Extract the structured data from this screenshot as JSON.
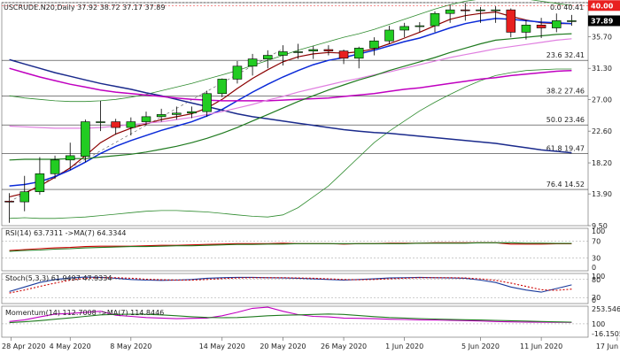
{
  "main": {
    "title": "USCRUDE.N20,Daily  37.92 38.72 37.17 37.89",
    "fib_top_label": "0.0 40.41",
    "current_level": "40.00",
    "current_price": "37.89",
    "y_ticks": [
      "35.70",
      "31.30",
      "27.00",
      "22.60",
      "18.20",
      "13.90",
      "9.50"
    ]
  },
  "rsi": {
    "label": "RSI(14) 63.7311  ->MA(7) 64.3344",
    "ticks": [
      "100",
      "70",
      "30",
      "0"
    ]
  },
  "stoch": {
    "label": "Stoch(5,3,3) 61.9497 47.9334",
    "ticks": [
      "100",
      "80",
      "20",
      "0"
    ]
  },
  "momentum": {
    "label": "Momentum(14) 112.7008  ->MA(7) 114.8446",
    "ticks": [
      "253.5462",
      "100",
      "-16.1505"
    ]
  },
  "x_axis_labels": [
    "28 Apr 2020",
    "4 May 2020",
    "8 May 2020",
    "14 May 2020",
    "20 May 2020",
    "26 May 2020",
    "1 Jun 2020",
    "5 Jun 2020",
    "11 Jun 2020",
    "17 Jun 2020"
  ],
  "chart_data": [
    {
      "type": "candlestick",
      "title": "USCRUDE.N20,Daily",
      "ylim": [
        9.5,
        40.4
      ],
      "x": [
        "27 Apr",
        "28 Apr",
        "29 Apr",
        "30 Apr",
        "1 May",
        "4 May",
        "5 May",
        "6 May",
        "7 May",
        "8 May",
        "11 May",
        "12 May",
        "13 May",
        "14 May",
        "15 May",
        "18 May",
        "19 May",
        "20 May",
        "21 May",
        "22 May",
        "25 May",
        "26 May",
        "27 May",
        "28 May",
        "29 May",
        "1 Jun",
        "2 Jun",
        "3 Jun",
        "4 Jun",
        "5 Jun",
        "8 Jun",
        "9 Jun",
        "10 Jun",
        "11 Jun",
        "12 Jun",
        "15 Jun",
        "16 Jun",
        "17 Jun"
      ],
      "open": [
        12.9,
        12.8,
        14.2,
        16.7,
        18.6,
        19.1,
        23.9,
        23.9,
        23.1,
        23.9,
        24.6,
        24.9,
        25.1,
        25.3,
        27.8,
        29.8,
        31.6,
        32.6,
        33.1,
        33.6,
        33.7,
        33.9,
        33.7,
        32.7,
        34.1,
        35.1,
        36.6,
        37.1,
        37.2,
        38.9,
        39.4,
        39.3,
        39.4,
        39.4,
        36.3,
        37.3,
        36.9,
        37.9
      ],
      "high": [
        14.0,
        16.4,
        19.0,
        19.2,
        21.0,
        24.2,
        26.8,
        24.3,
        24.5,
        25.3,
        25.7,
        26.0,
        26.0,
        28.2,
        29.9,
        32.3,
        33.3,
        33.8,
        34.5,
        34.7,
        34.4,
        34.5,
        33.9,
        34.3,
        35.6,
        37.2,
        37.6,
        37.7,
        39.2,
        40.1,
        40.3,
        39.8,
        39.9,
        39.6,
        38.0,
        38.3,
        38.9,
        38.7
      ],
      "low": [
        9.9,
        11.5,
        13.8,
        16.0,
        17.2,
        18.3,
        22.6,
        22.1,
        22.0,
        23.4,
        23.9,
        24.2,
        24.4,
        24.6,
        27.3,
        29.2,
        30.3,
        31.3,
        31.7,
        32.6,
        32.6,
        33.1,
        31.9,
        31.3,
        33.1,
        34.7,
        35.6,
        36.3,
        36.3,
        37.6,
        37.9,
        37.6,
        37.6,
        35.6,
        35.3,
        35.5,
        36.3,
        37.2
      ],
      "close": [
        12.8,
        14.2,
        16.7,
        18.6,
        19.2,
        23.9,
        23.9,
        23.1,
        23.9,
        24.6,
        24.9,
        25.1,
        25.3,
        27.8,
        29.8,
        31.6,
        32.6,
        33.1,
        33.6,
        33.6,
        33.9,
        33.7,
        32.7,
        34.1,
        35.1,
        36.6,
        37.1,
        37.2,
        38.9,
        39.4,
        39.3,
        39.4,
        39.4,
        36.3,
        37.3,
        36.9,
        37.9,
        37.9
      ],
      "fib_levels": [
        {
          "label": "0.0 40.41",
          "value": 40.41
        },
        {
          "label": "23.6 32.41",
          "value": 32.41
        },
        {
          "label": "38.2 27.46",
          "value": 27.46
        },
        {
          "label": "50.0 23.46",
          "value": 23.46
        },
        {
          "label": "61.8 19.47",
          "value": 19.47
        },
        {
          "label": "76.4 14.52",
          "value": 14.52
        }
      ],
      "horizontal_line": 40.0,
      "moving_averages": [
        {
          "color": "#8b0000",
          "values": [
            13.5,
            14.0,
            15.0,
            16.2,
            17.5,
            19.2,
            21.0,
            22.2,
            23.0,
            23.6,
            24.2,
            24.6,
            25.0,
            25.8,
            27.0,
            28.5,
            29.9,
            31.1,
            32.2,
            32.9,
            33.3,
            33.5,
            33.4,
            33.6,
            34.0,
            34.7,
            35.5,
            36.3,
            37.2,
            38.1,
            38.6,
            38.9,
            39.1,
            38.5,
            38.0,
            37.6,
            37.5,
            37.5
          ]
        },
        {
          "color": "#0a2ad8",
          "values": [
            15.0,
            15.2,
            15.6,
            16.3,
            17.2,
            18.3,
            19.5,
            20.5,
            21.3,
            22.0,
            22.7,
            23.3,
            23.9,
            24.7,
            25.6,
            26.8,
            28.0,
            29.1,
            30.1,
            31.0,
            31.8,
            32.4,
            32.8,
            33.3,
            33.8,
            34.4,
            35.0,
            35.5,
            36.2,
            36.9,
            37.5,
            37.9,
            38.2,
            38.1,
            37.9,
            37.7,
            37.6,
            37.5
          ]
        },
        {
          "color": "#1a2a8c",
          "values": [
            32.5,
            31.9,
            31.3,
            30.7,
            30.2,
            29.7,
            29.2,
            28.8,
            28.4,
            27.9,
            27.5,
            27.0,
            26.5,
            26.0,
            25.5,
            25.0,
            24.6,
            24.3,
            24.0,
            23.7,
            23.4,
            23.1,
            22.8,
            22.6,
            22.4,
            22.3,
            22.1,
            21.9,
            21.7,
            21.5,
            21.3,
            21.1,
            20.9,
            20.6,
            20.3,
            20.0,
            19.8,
            19.6
          ]
        },
        {
          "color": "#c000c0",
          "values": [
            31.3,
            30.7,
            30.1,
            29.6,
            29.1,
            28.7,
            28.3,
            28.0,
            27.8,
            27.6,
            27.4,
            27.2,
            27.0,
            26.9,
            26.8,
            26.8,
            26.8,
            26.8,
            26.9,
            27.0,
            27.1,
            27.2,
            27.4,
            27.6,
            27.8,
            28.1,
            28.4,
            28.6,
            28.9,
            29.2,
            29.5,
            29.8,
            30.0,
            30.3,
            30.5,
            30.7,
            30.9,
            31.0
          ]
        },
        {
          "color": "#e080e0",
          "values": [
            23.3,
            23.2,
            23.1,
            23.0,
            23.0,
            23.0,
            23.1,
            23.3,
            23.5,
            23.7,
            23.9,
            24.2,
            24.5,
            24.9,
            25.3,
            25.8,
            26.3,
            26.9,
            27.4,
            28.0,
            28.5,
            29.0,
            29.5,
            29.9,
            30.4,
            30.8,
            31.3,
            31.8,
            32.3,
            32.8,
            33.2,
            33.6,
            34.0,
            34.3,
            34.6,
            34.9,
            35.2,
            35.4
          ]
        },
        {
          "color": "#1f7a1f",
          "values": [
            18.6,
            18.7,
            18.7,
            18.7,
            18.8,
            18.8,
            19.0,
            19.2,
            19.4,
            19.7,
            20.1,
            20.5,
            21.0,
            21.6,
            22.3,
            23.1,
            24.0,
            24.9,
            25.8,
            26.7,
            27.5,
            28.3,
            29.0,
            29.7,
            30.3,
            31.0,
            31.6,
            32.2,
            32.8,
            33.5,
            34.1,
            34.7,
            35.2,
            35.4,
            35.6,
            35.8,
            36.0,
            36.1
          ]
        }
      ],
      "bollinger": [
        {
          "color": "#2e8b2e",
          "values": [
            27.5,
            27.2,
            27.0,
            26.8,
            26.7,
            26.7,
            26.8,
            27.0,
            27.3,
            27.7,
            28.2,
            28.7,
            29.2,
            29.8,
            30.4,
            31.0,
            31.7,
            32.4,
            33.1,
            33.8,
            34.4,
            35.0,
            35.6,
            36.1,
            36.7,
            37.4,
            38.1,
            38.8,
            39.5,
            40.1,
            40.6,
            40.9,
            41.1,
            41.1,
            40.9,
            40.6,
            40.3,
            40.0
          ]
        },
        {
          "color": "#2e8b2e",
          "values": [
            10.5,
            10.6,
            10.5,
            10.5,
            10.6,
            10.7,
            10.9,
            11.1,
            11.3,
            11.5,
            11.6,
            11.6,
            11.5,
            11.4,
            11.2,
            11.0,
            10.8,
            10.7,
            11.0,
            12.0,
            13.5,
            15.0,
            17.0,
            19.0,
            21.0,
            22.6,
            24.0,
            25.4,
            26.6,
            27.7,
            28.7,
            29.6,
            30.3,
            30.7,
            31.0,
            31.1,
            31.2,
            31.2
          ]
        }
      ]
    },
    {
      "type": "line",
      "title": "RSI(14)",
      "ylim": [
        0,
        100
      ],
      "series": [
        {
          "name": "RSI(14)",
          "color": "#cc0000",
          "values": [
            48,
            50,
            52,
            54,
            55,
            57,
            58,
            58,
            58,
            59,
            60,
            60,
            61,
            62,
            63,
            64,
            64,
            64,
            65,
            64,
            64,
            64,
            63,
            64,
            64,
            65,
            65,
            65,
            66,
            66,
            66,
            66,
            66,
            63,
            63,
            63,
            63.73,
            63.73
          ]
        },
        {
          "name": "MA(7)",
          "color": "#1f7a1f",
          "values": [
            46,
            48,
            49,
            51,
            52,
            54,
            55,
            56,
            57,
            57,
            58,
            59,
            59,
            60,
            61,
            62,
            62,
            63,
            63,
            64,
            64,
            64,
            64,
            64,
            64,
            64,
            64,
            65,
            65,
            65,
            65,
            66,
            66,
            66,
            65,
            65,
            64.33,
            64.33
          ]
        }
      ]
    },
    {
      "type": "line",
      "title": "Stoch(5,3,3)",
      "ylim": [
        0,
        100
      ],
      "series": [
        {
          "name": "%K",
          "color": "#1a3a9c",
          "values": [
            40,
            55,
            70,
            80,
            85,
            88,
            87,
            84,
            80,
            78,
            77,
            78,
            80,
            84,
            86,
            87,
            87,
            86,
            85,
            84,
            82,
            80,
            78,
            80,
            82,
            85,
            86,
            87,
            86,
            85,
            84,
            78,
            70,
            55,
            45,
            38,
            50,
            61.95
          ]
        },
        {
          "name": "%D",
          "color": "#cc0000",
          "values": [
            35,
            45,
            57,
            68,
            78,
            84,
            86,
            86,
            84,
            81,
            79,
            78,
            78,
            80,
            83,
            85,
            86,
            86,
            86,
            85,
            84,
            82,
            80,
            79,
            80,
            82,
            84,
            86,
            86,
            86,
            85,
            82,
            77,
            68,
            57,
            46,
            44,
            47.93
          ]
        }
      ]
    },
    {
      "type": "line",
      "title": "Momentum(14)",
      "ylim": [
        -16.1505,
        253.5462
      ],
      "series": [
        {
          "name": "Momentum(14)",
          "color": "#c000c0",
          "values": [
            120,
            135,
            160,
            185,
            190,
            200,
            210,
            175,
            165,
            155,
            150,
            145,
            148,
            150,
            170,
            200,
            235,
            245,
            210,
            180,
            165,
            160,
            150,
            148,
            145,
            140,
            138,
            135,
            133,
            130,
            128,
            125,
            120,
            117,
            115,
            114,
            113,
            112.7
          ]
        },
        {
          "name": "MA(7)",
          "color": "#1f7a1f",
          "values": [
            110,
            118,
            128,
            140,
            152,
            165,
            178,
            182,
            184,
            183,
            178,
            170,
            162,
            156,
            153,
            155,
            162,
            170,
            175,
            178,
            182,
            186,
            182,
            172,
            163,
            155,
            150,
            146,
            142,
            139,
            136,
            133,
            130,
            127,
            124,
            120,
            117,
            114.84
          ]
        }
      ]
    }
  ]
}
